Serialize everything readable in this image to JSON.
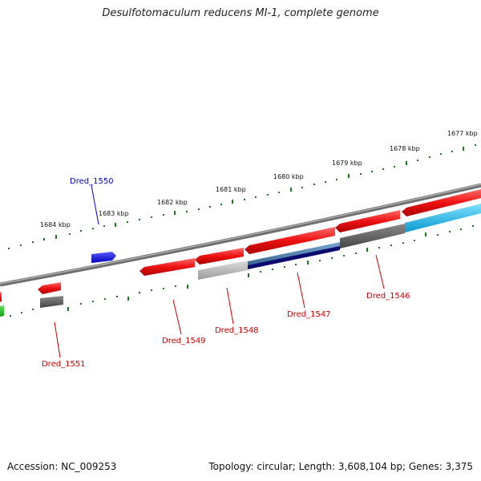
{
  "title": "Desulfotomaculum reducens MI-1, complete genome",
  "footer": {
    "accession": "Accession: NC_009253",
    "summary": "Topology: circular; Length: 3,608,104 bp; Genes: 3,375"
  },
  "scale_labels": [
    "1684 kbp",
    "1683 kbp",
    "1682 kbp",
    "1681 kbp",
    "1680 kbp",
    "1679 kbp",
    "1678 kbp",
    "1677 kbp"
  ],
  "gene_labels": {
    "dred_1550": "Dred_1550",
    "dred_1551": "Dred_1551",
    "dred_1549": "Dred_1549",
    "dred_1548": "Dred_1548",
    "dred_1547": "Dred_1547",
    "dred_1546": "Dred_1546"
  },
  "colors": {
    "backbone": "#808080",
    "ticks": "#1a7a1a",
    "label_blue": "#0000cc",
    "label_red": "#cc0000",
    "gene_red": "#ee1111",
    "gene_blue": "#0000ee",
    "gene_navy": "#0a0a70",
    "gene_steel": "#4a78a8",
    "gene_cyan": "#22b8e8",
    "gene_gray": "#555555",
    "gene_lightgray": "#b0b0b0",
    "gene_green": "#22bb22"
  }
}
